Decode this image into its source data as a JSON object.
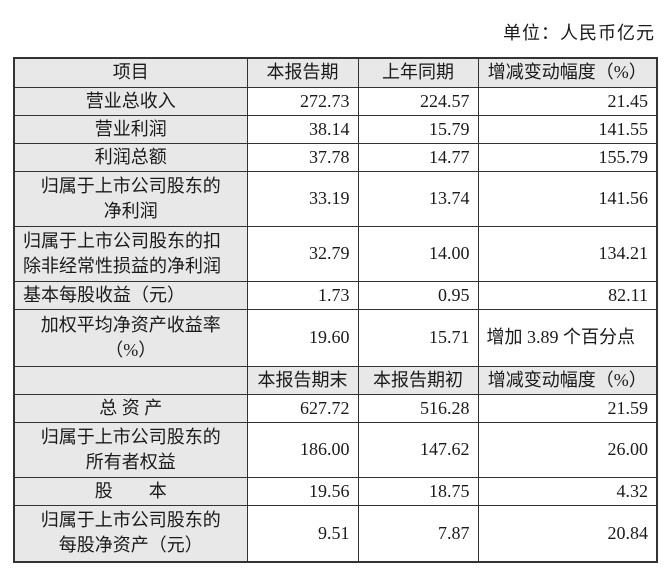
{
  "unit_label": "单位：人民币亿元",
  "colors": {
    "header_bg": "#e8e8e8",
    "label_column_bg": "#e8e8e8",
    "border": "#333333",
    "cell_bg": "#ffffff",
    "text": "#1a1a1a"
  },
  "table": {
    "header1": {
      "col0": "项目",
      "col1": "本报告期",
      "col2": "上年同期",
      "col3": "增减变动幅度（%）"
    },
    "rows1": [
      {
        "label": "营业总收入",
        "current": "272.73",
        "prior": "224.57",
        "change": "21.45"
      },
      {
        "label": "营业利润",
        "current": "38.14",
        "prior": "15.79",
        "change": "141.55"
      },
      {
        "label": "利润总额",
        "current": "37.78",
        "prior": "14.77",
        "change": "155.79"
      },
      {
        "label": "归属于上市公司股东的\n净利润",
        "current": "33.19",
        "prior": "13.74",
        "change": "141.56"
      },
      {
        "label": "归属于上市公司股东的扣\n除非经常性损益的净利润",
        "current": "32.79",
        "prior": "14.00",
        "change": "134.21"
      },
      {
        "label": "基本每股收益（元）",
        "current": "1.73",
        "prior": "0.95",
        "change": "82.11"
      },
      {
        "label": "加权平均净资产收益率\n（%）",
        "current": "19.60",
        "prior": "15.71",
        "change": "增加 3.89 个百分点"
      }
    ],
    "header2": {
      "col0": "",
      "col1": "本报告期末",
      "col2": "本报告期初",
      "col3": "增减变动幅度（%）"
    },
    "rows2": [
      {
        "label": "总 资 产",
        "current": "627.72",
        "prior": "516.28",
        "change": "21.59"
      },
      {
        "label": "归属于上市公司股东的\n所有者权益",
        "current": "186.00",
        "prior": "147.62",
        "change": "26.00"
      },
      {
        "label": "股　　本",
        "current": "19.56",
        "prior": "18.75",
        "change": "4.32"
      },
      {
        "label": "归属于上市公司股东的\n每股净资产（元）",
        "current": "9.51",
        "prior": "7.87",
        "change": "20.84"
      }
    ]
  }
}
